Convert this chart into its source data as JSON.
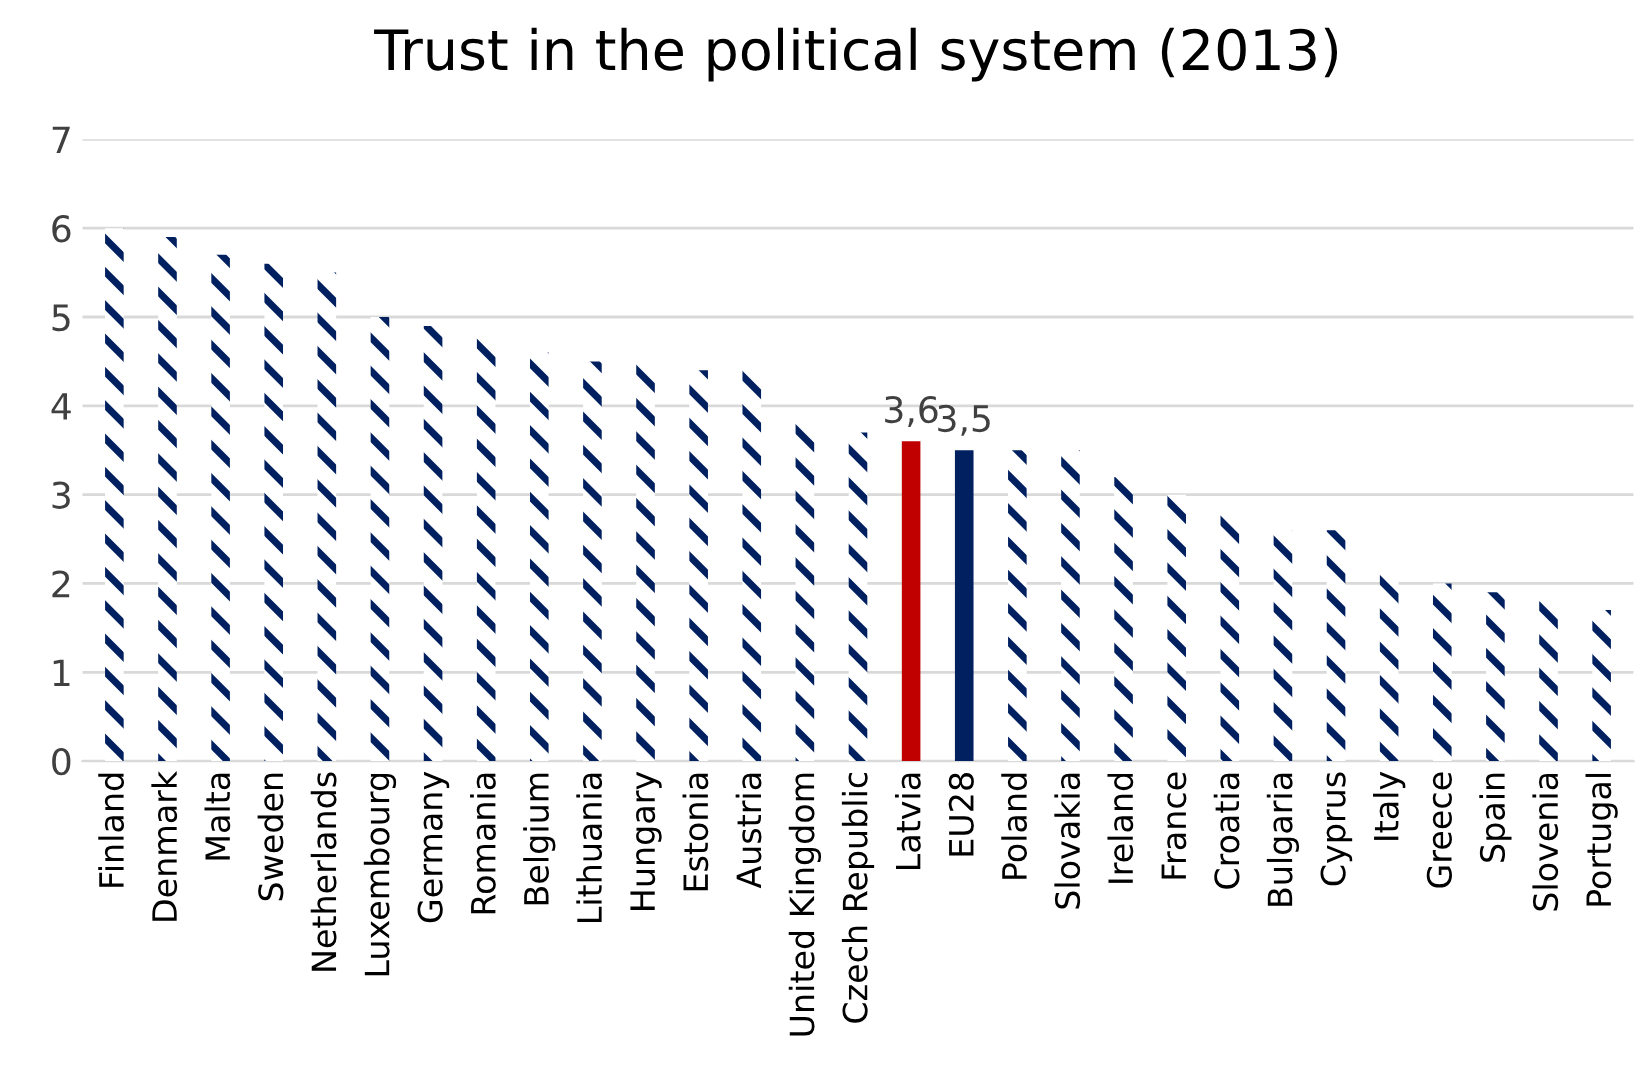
{
  "chart_data": {
    "type": "bar",
    "title": "Trust in the political system (2013)",
    "categories": [
      "Finland",
      "Denmark",
      "Malta",
      "Sweden",
      "Netherlands",
      "Luxembourg",
      "Germany",
      "Romania",
      "Belgium",
      "Lithuania",
      "Hungary",
      "Estonia",
      "Austria",
      "United Kingdom",
      "Czech Republic",
      "Latvia",
      "EU28",
      "Poland",
      "Slovakia",
      "Ireland",
      "France",
      "Croatia",
      "Bulgaria",
      "Cyprus",
      "Italy",
      "Greece",
      "Spain",
      "Slovenia",
      "Portugal"
    ],
    "values": [
      6.0,
      5.9,
      5.7,
      5.6,
      5.5,
      5.0,
      4.9,
      4.8,
      4.6,
      4.5,
      4.5,
      4.4,
      4.4,
      3.8,
      3.7,
      3.6,
      3.5,
      3.5,
      3.5,
      3.2,
      3.0,
      2.8,
      2.6,
      2.6,
      2.1,
      2.0,
      1.9,
      1.8,
      1.7
    ],
    "colors": [
      "#002060",
      "#002060",
      "#002060",
      "#002060",
      "#002060",
      "#002060",
      "#002060",
      "#002060",
      "#002060",
      "#002060",
      "#002060",
      "#002060",
      "#002060",
      "#002060",
      "#002060",
      "#c00000",
      "#002060",
      "#002060",
      "#002060",
      "#002060",
      "#002060",
      "#002060",
      "#002060",
      "#002060",
      "#002060",
      "#002060",
      "#002060",
      "#002060",
      "#002060"
    ],
    "value_labels": [
      null,
      null,
      null,
      null,
      null,
      null,
      null,
      null,
      null,
      null,
      null,
      null,
      null,
      null,
      null,
      "3,6",
      "3,5",
      null,
      null,
      null,
      null,
      null,
      null,
      null,
      null,
      null,
      null,
      null,
      null
    ],
    "ylim": [
      0,
      7
    ],
    "yticks": [
      0,
      1,
      2,
      3,
      4,
      5,
      6,
      7
    ],
    "grid": "y",
    "legend": false
  }
}
